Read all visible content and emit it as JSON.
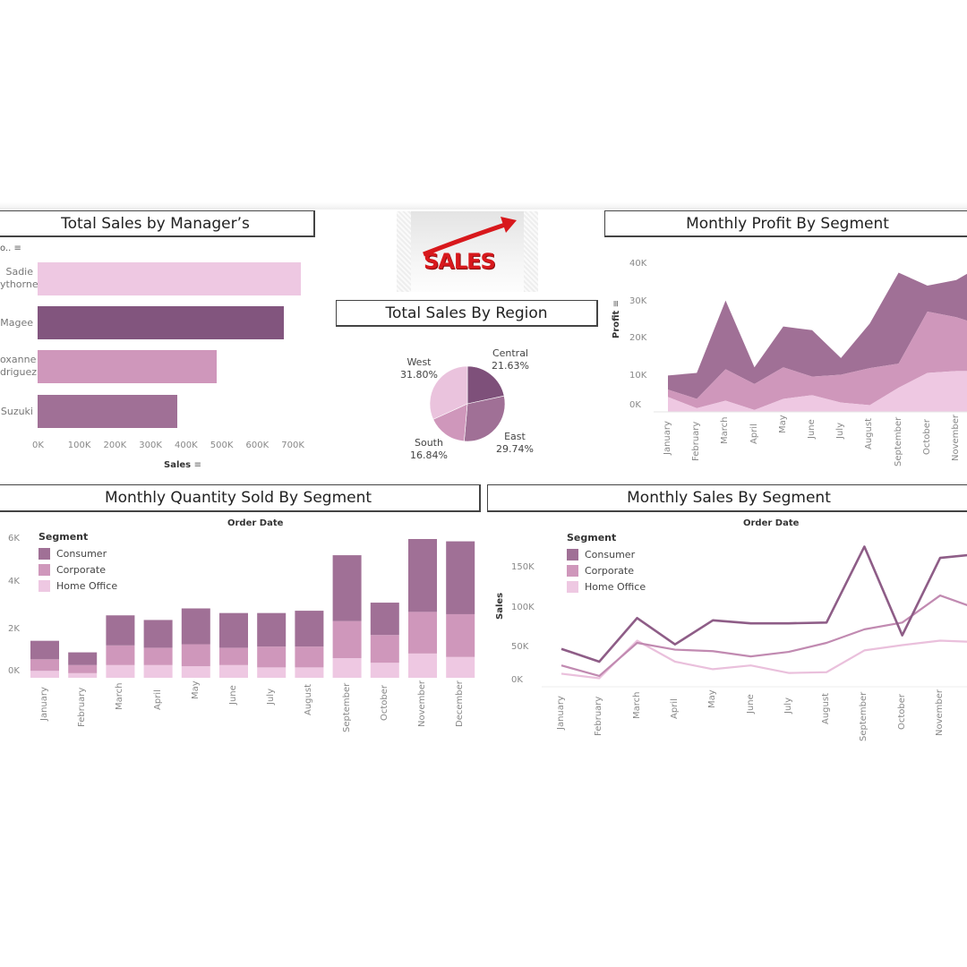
{
  "dashboard": {
    "logo": {
      "text": "SALES",
      "icon": "rising-arrow-icon"
    },
    "palette": {
      "consumer": "#a07096",
      "corporate": "#cf97bb",
      "home_office": "#eec8e2",
      "dark": "#82557e"
    }
  },
  "managers": {
    "title": "Total Sales by Manager’s",
    "dim_label": "o..",
    "xlabel": "Sales",
    "ticks": [
      "0K",
      "100K",
      "200K",
      "300K",
      "400K",
      "500K",
      "600K",
      "700K"
    ],
    "rows": [
      {
        "line1": "Sadie",
        "line2": "ythorne",
        "value": 740000,
        "color": "#eec8e2"
      },
      {
        "line1": "Magee",
        "line2": "",
        "value": 692000,
        "color": "#82557e"
      },
      {
        "line1": "oxanne",
        "line2": "driguez",
        "value": 503000,
        "color": "#cf97bb"
      },
      {
        "line1": "Suzuki",
        "line2": "",
        "value": 392000,
        "color": "#a07096"
      }
    ]
  },
  "region": {
    "title": "Total Sales By Region",
    "slices": [
      {
        "name": "Central",
        "pct": "21.63%",
        "value": 21.63,
        "color": "#7e507a"
      },
      {
        "name": "East",
        "pct": "29.74%",
        "value": 29.74,
        "color": "#a07096"
      },
      {
        "name": "South",
        "pct": "16.84%",
        "value": 16.84,
        "color": "#cf97bb"
      },
      {
        "name": "West",
        "pct": "31.80%",
        "value": 31.8,
        "color": "#eac3dd"
      }
    ]
  },
  "profit": {
    "title": "Monthly Profit By Segment",
    "ylabel": "Profit",
    "ticks": [
      "40K",
      "30K",
      "20K",
      "10K",
      "0K"
    ]
  },
  "quantity": {
    "title": "Monthly Quantity Sold By Segment",
    "header": "Order Date",
    "ticks": [
      "6K",
      "4K",
      "2K",
      "0K"
    ]
  },
  "sales_line": {
    "title": "Monthly Sales By Segment",
    "header": "Order Date",
    "ylabel": "Sales",
    "ticks": [
      "150K",
      "100K",
      "50K",
      "0K"
    ]
  },
  "legend": {
    "title": "Segment",
    "items": [
      {
        "label": "Consumer",
        "color": "#a07096"
      },
      {
        "label": "Corporate",
        "color": "#cf97bb"
      },
      {
        "label": "Home Office",
        "color": "#eec8e2"
      }
    ]
  },
  "months": [
    "January",
    "February",
    "March",
    "April",
    "May",
    "June",
    "July",
    "August",
    "September",
    "October",
    "November",
    "December"
  ],
  "chart_data": [
    {
      "type": "bar",
      "title": "Total Sales by Manager’s",
      "orientation": "horizontal",
      "categories": [
        "Sadie ...ythorne",
        "Magee",
        "...oxanne ...driguez",
        "Suzuki"
      ],
      "values": [
        740000,
        692000,
        503000,
        392000
      ],
      "xlabel": "Sales",
      "xlim": [
        0,
        750000
      ]
    },
    {
      "type": "pie",
      "title": "Total Sales By Region",
      "categories": [
        "Central",
        "East",
        "South",
        "West"
      ],
      "values": [
        21.63,
        29.74,
        16.84,
        31.8
      ]
    },
    {
      "type": "area",
      "title": "Monthly Profit By Segment",
      "stacked": true,
      "ylabel": "Profit",
      "ylim": [
        0,
        40000
      ],
      "x": [
        "January",
        "February",
        "March",
        "April",
        "May",
        "June",
        "July",
        "August",
        "September",
        "October",
        "November",
        "December"
      ],
      "series": [
        {
          "name": "Home Office",
          "values": [
            4000,
            1000,
            3000,
            500,
            3500,
            4500,
            2500,
            1800,
            6500,
            10500,
            11000,
            11000
          ]
        },
        {
          "name": "Corporate",
          "values": [
            2000,
            2500,
            8500,
            7000,
            8500,
            5000,
            7500,
            10000,
            6500,
            16500,
            14500,
            12000
          ]
        },
        {
          "name": "Consumer",
          "values": [
            3800,
            7000,
            18500,
            4500,
            11000,
            12500,
            4500,
            12000,
            24500,
            7000,
            10000,
            17000
          ]
        }
      ]
    },
    {
      "type": "bar",
      "title": "Monthly Quantity Sold By Segment",
      "stacked": true,
      "xlabel": "Order Date",
      "ylim": [
        0,
        6000
      ],
      "categories": [
        "January",
        "February",
        "March",
        "April",
        "May",
        "June",
        "July",
        "August",
        "September",
        "October",
        "November",
        "December"
      ],
      "series": [
        {
          "name": "Home Office",
          "values": [
            300,
            200,
            550,
            550,
            500,
            550,
            450,
            450,
            850,
            650,
            1050,
            900
          ]
        },
        {
          "name": "Corporate",
          "values": [
            500,
            350,
            850,
            750,
            950,
            750,
            900,
            900,
            1600,
            1200,
            1800,
            1850
          ]
        },
        {
          "name": "Consumer",
          "values": [
            800,
            550,
            1300,
            1200,
            1550,
            1500,
            1450,
            1550,
            2850,
            1400,
            3150,
            3150
          ]
        }
      ]
    },
    {
      "type": "line",
      "title": "Monthly Sales By Segment",
      "xlabel": "Order Date",
      "ylabel": "Sales",
      "ylim": [
        0,
        180000
      ],
      "x": [
        "January",
        "February",
        "March",
        "April",
        "May",
        "June",
        "July",
        "August",
        "September",
        "October",
        "November",
        "December"
      ],
      "series": [
        {
          "name": "Consumer",
          "values": [
            42000,
            25000,
            83000,
            48000,
            80000,
            76000,
            76000,
            77000,
            178000,
            60000,
            163000,
            168000
          ]
        },
        {
          "name": "Corporate",
          "values": [
            20000,
            6000,
            50000,
            41000,
            39000,
            32000,
            38000,
            50000,
            68000,
            77000,
            113000,
            95000
          ]
        },
        {
          "name": "Home Office",
          "values": [
            9000,
            3000,
            53000,
            25000,
            15000,
            20000,
            10000,
            11000,
            40000,
            47000,
            53000,
            51000
          ]
        }
      ]
    }
  ]
}
